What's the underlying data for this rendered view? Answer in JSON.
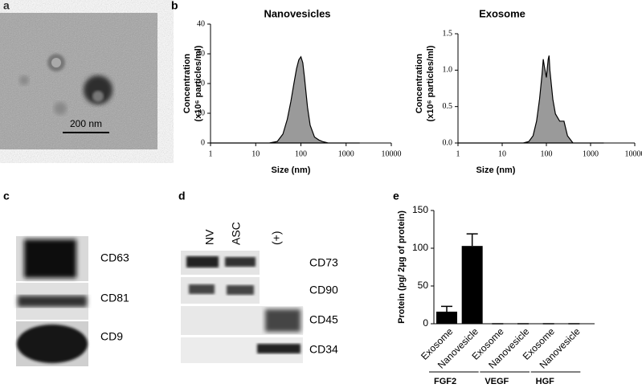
{
  "panel_labels": [
    "a",
    "b",
    "c",
    "d",
    "e"
  ],
  "tem": {
    "scale_bar": "200 nm"
  },
  "chart_data": [
    {
      "type": "area",
      "title": "Nanovesicles",
      "ylabel": [
        "Concentration",
        "(x10⁶ particles/ml)"
      ],
      "xlabel": "Size (nm)",
      "log_x": true,
      "xlim": [
        1,
        10000
      ],
      "xticks": [
        1,
        10,
        100,
        1000,
        10000
      ],
      "ylim": [
        0,
        40
      ],
      "yticks": [
        0,
        10,
        20,
        30,
        40
      ],
      "color": "#9a9a9a",
      "x": [
        1,
        20,
        30,
        40,
        50,
        60,
        70,
        80,
        90,
        100,
        110,
        120,
        140,
        160,
        200,
        250,
        300,
        400,
        2000
      ],
      "values": [
        0,
        0,
        0.5,
        3,
        8,
        14,
        20,
        25,
        28,
        29,
        27,
        22,
        12,
        6,
        2,
        1,
        0.5,
        0,
        0
      ]
    },
    {
      "type": "area",
      "title": "Exosome",
      "ylabel": [
        "Concentration",
        "(x10⁶ particles/ml)"
      ],
      "xlabel": "Size (nm)",
      "log_x": true,
      "xlim": [
        1,
        10000
      ],
      "xticks": [
        1,
        10,
        100,
        1000,
        10000
      ],
      "ylim": [
        0,
        1.5
      ],
      "yticks": [
        {
          "value": 0,
          "label": "0.0"
        },
        0.5,
        {
          "value": 1,
          "label": "1.0"
        },
        1.5
      ],
      "color": "#9a9a9a",
      "x": [
        1,
        30,
        40,
        50,
        60,
        70,
        80,
        85,
        90,
        100,
        110,
        115,
        120,
        140,
        160,
        200,
        250,
        300,
        400,
        2000
      ],
      "values": [
        0,
        0,
        0.02,
        0.1,
        0.3,
        0.6,
        0.95,
        1.15,
        1.05,
        0.9,
        1.15,
        1.2,
        1.0,
        0.6,
        0.4,
        0.3,
        0.3,
        0.1,
        0,
        0
      ]
    },
    {
      "type": "bar",
      "ylabel": "Protein (pg/ 2µg of protein)",
      "categories": [
        "Exosome",
        "Nanovesicle",
        "Exosome",
        "Nanovesicle",
        "Exosome",
        "Nanovesicle"
      ],
      "groups": [
        "FGF2",
        "VEGF",
        "HGF"
      ],
      "color": "#000000",
      "values": [
        16,
        103,
        0,
        0,
        0,
        0
      ],
      "errors": [
        7,
        16,
        0,
        0,
        0,
        0
      ],
      "ylim": [
        0,
        150
      ],
      "yticks": [
        0,
        50,
        100,
        150
      ]
    }
  ],
  "blot_c": {
    "labels": [
      "CD63",
      "CD81",
      "CD9"
    ]
  },
  "blot_d": {
    "lanes": [
      "NV",
      "ASC",
      "(+)"
    ],
    "labels": [
      "CD73",
      "CD90",
      "CD45",
      "CD34"
    ]
  }
}
